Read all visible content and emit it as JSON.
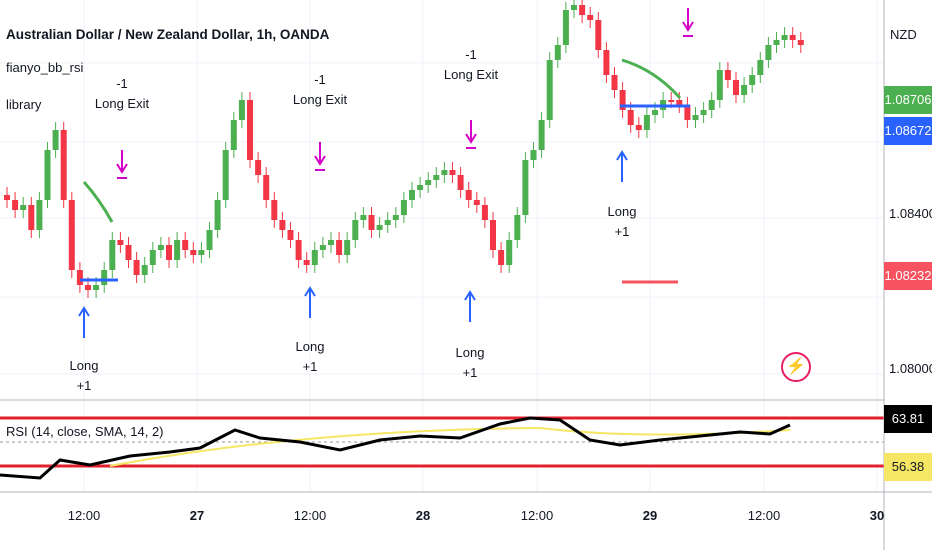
{
  "header": {
    "title": "Australian Dollar / New Zealand Dollar, 1h, OANDA",
    "indicator_name": "fianyo_bb_rsi",
    "indicator_sub": "library"
  },
  "price_axis": {
    "currency": "NZD",
    "ticks": [
      "1.08400",
      "1.08000"
    ],
    "tags": [
      {
        "value": "1.08706",
        "color": "#4caf50"
      },
      {
        "value": "1.08672",
        "color": "#2962ff"
      },
      {
        "value": "1.08232",
        "color": "#f7525f"
      }
    ]
  },
  "rsi": {
    "legend": "RSI (14, close, SMA, 14, 2)",
    "value": "63.81",
    "sma_value": "56.38",
    "upper_band": 70,
    "lower_band": 30
  },
  "time_axis": [
    {
      "label": "12:00",
      "bold": false
    },
    {
      "label": "27",
      "bold": true
    },
    {
      "label": "12:00",
      "bold": false
    },
    {
      "label": "28",
      "bold": true
    },
    {
      "label": "12:00",
      "bold": false
    },
    {
      "label": "29",
      "bold": true
    },
    {
      "label": "12:00",
      "bold": false
    },
    {
      "label": "30",
      "bold": true
    }
  ],
  "annotations": [
    {
      "line1": "Long",
      "line2": "+1"
    },
    {
      "line1": "-1",
      "line2": "Long Exit"
    },
    {
      "line1": "Long",
      "line2": "+1"
    },
    {
      "line1": "-1",
      "line2": "Long Exit"
    },
    {
      "line1": "Long",
      "line2": "+1"
    },
    {
      "line1": "-1",
      "line2": "Long Exit"
    },
    {
      "line1": "Long",
      "line2": "+1"
    }
  ],
  "colors": {
    "up": "#4caf50",
    "down": "#f23645",
    "rsi_line": "#000000",
    "rsi_sma": "#f5e663",
    "band": "#e0202c",
    "long_arrow": "#2962ff",
    "exit_arrow": "#d500c8"
  },
  "icons": [
    "bolt-icon"
  ]
}
